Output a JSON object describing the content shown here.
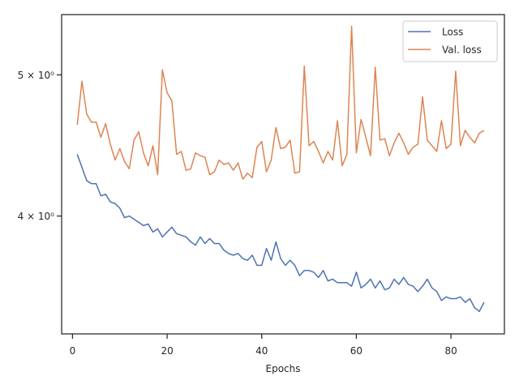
{
  "chart_data": {
    "type": "line",
    "title": "",
    "xlabel": "Epochs",
    "ylabel": "",
    "xlim": [
      -2.3,
      91.3
    ],
    "ylim": [
      3.32,
      5.5
    ],
    "yscale": "log",
    "grid": false,
    "legend_position": "top-right",
    "x_ticks": [
      0,
      20,
      40,
      60,
      80
    ],
    "x_tick_labels": [
      "0",
      "20",
      "40",
      "60",
      "80"
    ],
    "y_ticks": [
      4,
      5
    ],
    "y_tick_labels": [
      "4 × 10⁰",
      "5 × 10⁰"
    ],
    "x": [
      1,
      2,
      3,
      4,
      5,
      6,
      7,
      8,
      9,
      10,
      11,
      12,
      13,
      14,
      15,
      16,
      17,
      18,
      19,
      20,
      21,
      22,
      23,
      24,
      25,
      26,
      27,
      28,
      29,
      30,
      31,
      32,
      33,
      34,
      35,
      36,
      37,
      38,
      39,
      40,
      41,
      42,
      43,
      44,
      45,
      46,
      47,
      48,
      49,
      50,
      51,
      52,
      53,
      54,
      55,
      56,
      57,
      58,
      59,
      60,
      61,
      62,
      63,
      64,
      65,
      66,
      67,
      68,
      69,
      70,
      71,
      72,
      73,
      74,
      75,
      76,
      77,
      78,
      79,
      80,
      81,
      82,
      83,
      84,
      85,
      86,
      87
    ],
    "series": [
      {
        "name": "Loss",
        "color": "#4c72b0",
        "values": [
          4.41,
          4.32,
          4.23,
          4.21,
          4.21,
          4.13,
          4.14,
          4.09,
          4.08,
          4.05,
          3.99,
          4.0,
          3.98,
          3.96,
          3.94,
          3.95,
          3.9,
          3.92,
          3.87,
          3.9,
          3.93,
          3.89,
          3.88,
          3.87,
          3.84,
          3.82,
          3.87,
          3.83,
          3.86,
          3.83,
          3.83,
          3.79,
          3.77,
          3.76,
          3.77,
          3.74,
          3.73,
          3.76,
          3.7,
          3.7,
          3.8,
          3.73,
          3.84,
          3.74,
          3.7,
          3.73,
          3.7,
          3.64,
          3.67,
          3.67,
          3.66,
          3.63,
          3.67,
          3.61,
          3.62,
          3.6,
          3.6,
          3.6,
          3.58,
          3.66,
          3.57,
          3.59,
          3.62,
          3.57,
          3.61,
          3.56,
          3.57,
          3.62,
          3.59,
          3.63,
          3.59,
          3.58,
          3.55,
          3.58,
          3.62,
          3.57,
          3.55,
          3.5,
          3.52,
          3.51,
          3.51,
          3.52,
          3.49,
          3.51,
          3.46,
          3.44,
          3.49
        ]
      },
      {
        "name": "Val. loss",
        "color": "#dd8452",
        "values": [
          4.62,
          4.95,
          4.7,
          4.64,
          4.64,
          4.53,
          4.63,
          4.48,
          4.37,
          4.45,
          4.36,
          4.31,
          4.51,
          4.57,
          4.42,
          4.33,
          4.47,
          4.27,
          5.04,
          4.86,
          4.8,
          4.41,
          4.43,
          4.3,
          4.31,
          4.42,
          4.4,
          4.39,
          4.27,
          4.29,
          4.37,
          4.34,
          4.35,
          4.3,
          4.35,
          4.24,
          4.28,
          4.25,
          4.46,
          4.5,
          4.29,
          4.37,
          4.6,
          4.45,
          4.46,
          4.51,
          4.28,
          4.29,
          5.07,
          4.47,
          4.5,
          4.43,
          4.35,
          4.43,
          4.37,
          4.65,
          4.33,
          4.41,
          5.4,
          4.42,
          4.66,
          4.53,
          4.4,
          5.06,
          4.51,
          4.52,
          4.4,
          4.49,
          4.56,
          4.49,
          4.41,
          4.46,
          4.48,
          4.83,
          4.51,
          4.47,
          4.43,
          4.65,
          4.45,
          4.48,
          5.03,
          4.47,
          4.58,
          4.53,
          4.49,
          4.56,
          4.58
        ]
      }
    ]
  }
}
